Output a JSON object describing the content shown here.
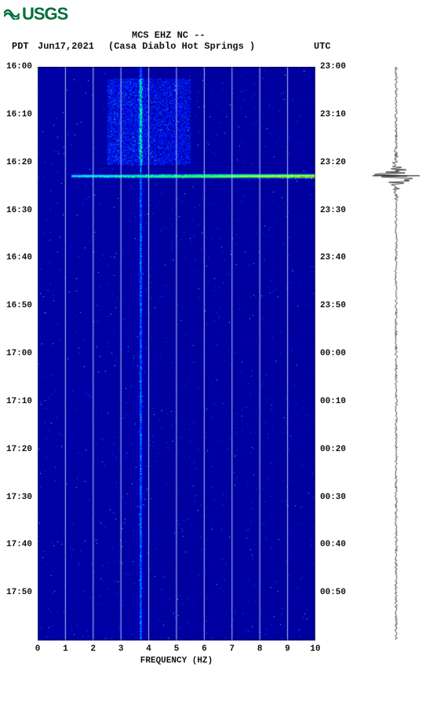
{
  "logo_text": "USGS",
  "header": {
    "line1": "MCS EHZ NC --",
    "pdt": "PDT",
    "date": "Jun17,2021",
    "location": "(Casa Diablo Hot Springs )",
    "utc": "UTC"
  },
  "spectrogram": {
    "type": "spectrogram",
    "x_label": "FREQUENCY (HZ)",
    "x_ticks": [
      0,
      1,
      2,
      3,
      4,
      5,
      6,
      7,
      8,
      9,
      10
    ],
    "x_range": [
      0,
      10
    ],
    "left_time_labels": [
      "16:00",
      "16:10",
      "16:20",
      "16:30",
      "16:40",
      "16:50",
      "17:00",
      "17:10",
      "17:20",
      "17:30",
      "17:40",
      "17:50"
    ],
    "right_time_labels": [
      "23:00",
      "23:10",
      "23:20",
      "23:30",
      "23:40",
      "23:50",
      "00:00",
      "00:10",
      "00:20",
      "00:30",
      "00:40",
      "00:50"
    ],
    "label_fontsize": 11,
    "title_fontsize": 12,
    "background_color": "#00008b",
    "grid_color": "#b8c8f0",
    "colors": {
      "low": "#00008b",
      "mid_low": "#0033cc",
      "mid": "#0099ff",
      "mid_high": "#00ffff",
      "high": "#ffff00",
      "max": "#ff0000"
    },
    "vertical_streak_freq": 3.7,
    "event_band": {
      "time_frac": 0.19,
      "freq_start_frac": 0.15,
      "intensity": "high"
    },
    "cloud_region": {
      "time_frac_start": 0.02,
      "time_frac_end": 0.17,
      "freq_frac_start": 0.25,
      "freq_frac_end": 0.55
    }
  },
  "seismo_trace": {
    "color": "#000000",
    "event_time_frac": 0.19,
    "amplitude_max": 30
  }
}
